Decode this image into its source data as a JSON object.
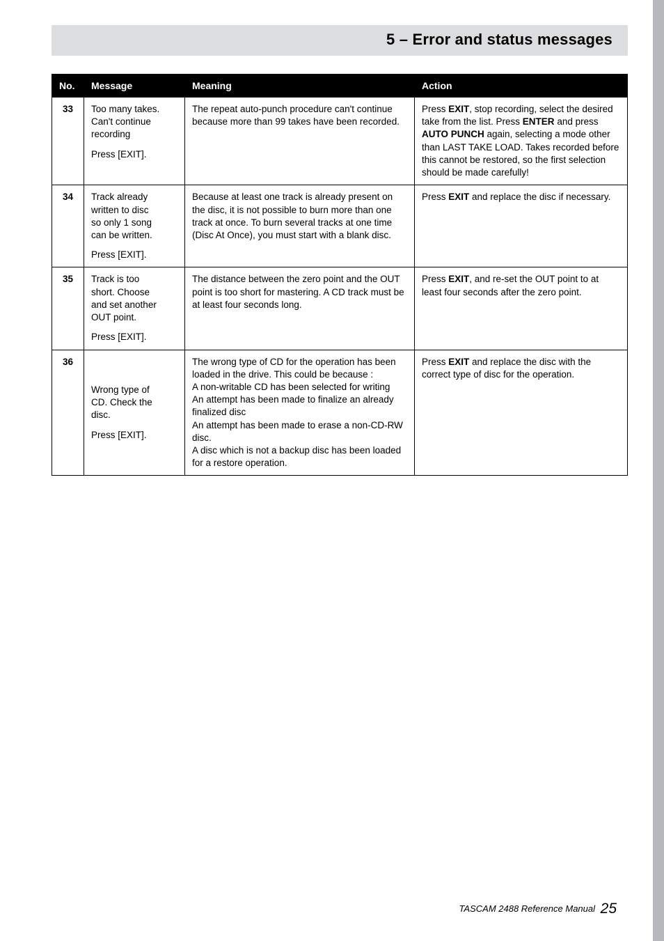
{
  "header": {
    "section_title": "5 – Error and status messages"
  },
  "table": {
    "columns": {
      "no": "No.",
      "message": "Message",
      "meaning": "Meaning",
      "action": "Action"
    },
    "rows": [
      {
        "no": "33",
        "message_lines": [
          "Too many takes.",
          "Can't continue",
          "recording"
        ],
        "message_exit": "Press [EXIT].",
        "meaning": "The repeat auto-punch procedure can't continue because more than 99 takes have been recorded.",
        "action_pre1": "Press ",
        "action_b1": "EXIT",
        "action_mid1": ", stop recording, select the desired take from the list. Press ",
        "action_b2": "ENTER",
        "action_mid2": " and press ",
        "action_b3": "AUTO PUNCH",
        "action_post": " again, selecting a mode other than LAST TAKE LOAD. Takes recorded before this cannot be restored, so the first selection should be made carefully!"
      },
      {
        "no": "34",
        "message_lines": [
          "Track already",
          "written to disc",
          "so only 1 song",
          "can be written."
        ],
        "message_exit": "Press [EXIT].",
        "meaning": "Because at least one track is already present on the disc, it is not possible to burn more than one track at once. To burn several tracks at one time (Disc At Once), you must start with a blank disc.",
        "action_pre1": "Press ",
        "action_b1": "EXIT",
        "action_post": " and replace the disc if necessary."
      },
      {
        "no": "35",
        "message_lines": [
          "Track is too",
          "short. Choose",
          "and set another",
          "OUT point."
        ],
        "message_exit": "Press [EXIT].",
        "meaning": "The distance between the zero point and the OUT point is too short for mastering. A CD track must be at least four seconds long.",
        "action_pre1": "Press ",
        "action_b1": "EXIT",
        "action_post": ", and re-set the OUT point to at least four seconds after the zero point."
      },
      {
        "no": "36",
        "message_lines": [
          "Wrong type of",
          "CD. Check the",
          "disc."
        ],
        "message_exit": "Press [EXIT].",
        "meaning_lines": [
          "The wrong type of CD for the operation has been loaded in the drive. This could be because :",
          "A non-writable CD has been selected for writing",
          "An attempt has been made to finalize an already finalized disc",
          "An attempt has been made to erase a non-CD-RW disc.",
          "A disc which is not a backup disc has been loaded for a restore operation."
        ],
        "action_pre1": "Press ",
        "action_b1": "EXIT",
        "action_post": " and replace the disc with the correct type of disc for the operation."
      }
    ]
  },
  "footer": {
    "text": "TASCAM 2488 Reference Manual",
    "page": "25"
  },
  "colors": {
    "header_band_bg": "#dcdddf",
    "table_border": "#000000",
    "th_bg": "#000000",
    "th_fg": "#ffffff",
    "side_tab": "#b6b8bb"
  }
}
